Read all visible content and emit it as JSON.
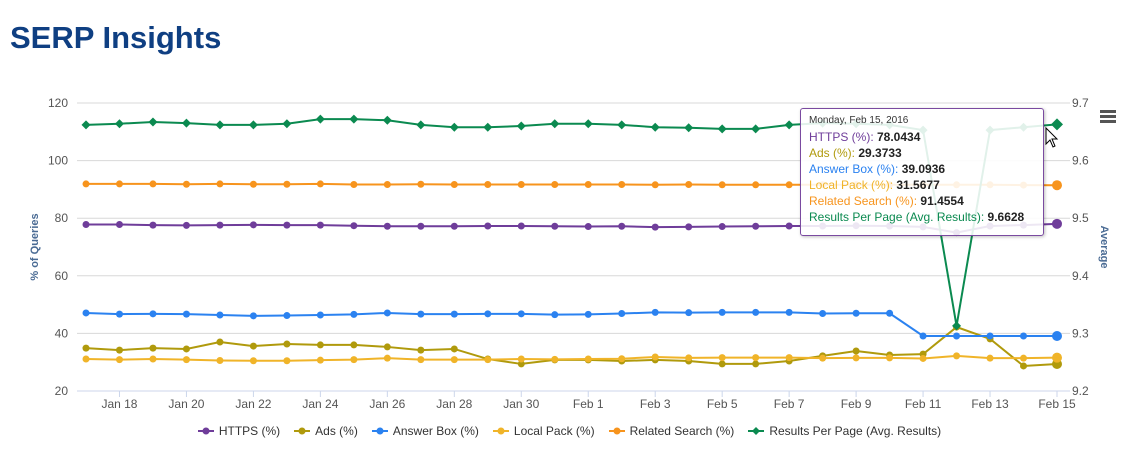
{
  "page_title": "SERP Insights",
  "chart_data": {
    "type": "line",
    "x": [
      "Jan 17",
      "Jan 18",
      "Jan 19",
      "Jan 20",
      "Jan 21",
      "Jan 22",
      "Jan 23",
      "Jan 24",
      "Jan 25",
      "Jan 26",
      "Jan 27",
      "Jan 28",
      "Jan 29",
      "Jan 30",
      "Jan 31",
      "Feb 1",
      "Feb 2",
      "Feb 3",
      "Feb 4",
      "Feb 5",
      "Feb 6",
      "Feb 7",
      "Feb 8",
      "Feb 9",
      "Feb 10",
      "Feb 11",
      "Feb 12",
      "Feb 13",
      "Feb 14",
      "Feb 15"
    ],
    "x_tick_labels": [
      "Jan 18",
      "Jan 20",
      "Jan 22",
      "Jan 24",
      "Jan 26",
      "Jan 28",
      "Jan 30",
      "Feb 1",
      "Feb 3",
      "Feb 5",
      "Feb 7",
      "Feb 9",
      "Feb 11",
      "Feb 13",
      "Feb 15"
    ],
    "ylabel": "% of Queries",
    "ylim": [
      20,
      120
    ],
    "yticks": [
      "20",
      "40",
      "60",
      "80",
      "100",
      "120"
    ],
    "y2label": "Average",
    "y2lim": [
      9.2,
      9.7
    ],
    "y2ticks": [
      "9.2",
      "9.3",
      "9.4",
      "9.5",
      "9.6",
      "9.7"
    ],
    "grid": true,
    "legend_position": "bottom",
    "series": [
      {
        "name": "HTTPS (%)",
        "color": "#6f3d9a",
        "axis": "left",
        "marker": "circle",
        "values": [
          77.8,
          77.8,
          77.6,
          77.5,
          77.6,
          77.7,
          77.6,
          77.6,
          77.4,
          77.2,
          77.2,
          77.2,
          77.3,
          77.3,
          77.2,
          77.1,
          77.2,
          76.9,
          77.0,
          77.1,
          77.2,
          77.3,
          77.3,
          77.4,
          77.3,
          77.0,
          75.0,
          77.3,
          77.6,
          78.0434
        ]
      },
      {
        "name": "Ads (%)",
        "color": "#b09a0c",
        "axis": "left",
        "marker": "circle",
        "values": [
          34.9,
          34.2,
          34.9,
          34.6,
          37.0,
          35.6,
          36.3,
          36.0,
          36.0,
          35.3,
          34.2,
          34.6,
          31.1,
          29.4,
          30.8,
          30.8,
          30.4,
          30.8,
          30.4,
          29.4,
          29.4,
          30.4,
          32.2,
          33.9,
          32.5,
          32.8,
          42.2,
          38.1,
          28.7,
          29.3733
        ]
      },
      {
        "name": "Answer Box (%)",
        "color": "#2b82f0",
        "axis": "left",
        "marker": "circle",
        "values": [
          47.1,
          46.7,
          46.8,
          46.7,
          46.4,
          46.1,
          46.2,
          46.4,
          46.6,
          47.1,
          46.7,
          46.7,
          46.8,
          46.8,
          46.5,
          46.6,
          46.9,
          47.3,
          47.2,
          47.3,
          47.3,
          47.3,
          46.9,
          47.0,
          47.0,
          39.1,
          39.1,
          39.1,
          39.1,
          39.0936
        ]
      },
      {
        "name": "Local Pack (%)",
        "color": "#f0b429",
        "axis": "left",
        "marker": "circle",
        "values": [
          31.1,
          30.9,
          31.1,
          30.9,
          30.6,
          30.5,
          30.5,
          30.7,
          30.9,
          31.4,
          30.9,
          30.9,
          30.9,
          31.1,
          31.0,
          31.1,
          31.2,
          31.8,
          31.5,
          31.6,
          31.6,
          31.6,
          31.4,
          31.5,
          31.5,
          31.3,
          32.2,
          31.4,
          31.4,
          31.5677
        ]
      },
      {
        "name": "Related Search (%)",
        "color": "#f7941d",
        "axis": "left",
        "marker": "circle",
        "values": [
          91.9,
          91.9,
          91.9,
          91.8,
          91.9,
          91.8,
          91.8,
          91.9,
          91.7,
          91.7,
          91.8,
          91.7,
          91.7,
          91.7,
          91.7,
          91.7,
          91.7,
          91.6,
          91.7,
          91.6,
          91.6,
          91.6,
          91.6,
          91.6,
          91.6,
          91.6,
          91.6,
          91.6,
          91.5,
          91.4554
        ]
      },
      {
        "name": "Results Per Page (Avg. Results)",
        "color": "#0b8a50",
        "axis": "right",
        "marker": "diamond",
        "values": [
          9.662,
          9.664,
          9.667,
          9.665,
          9.662,
          9.662,
          9.664,
          9.672,
          9.672,
          9.67,
          9.662,
          9.658,
          9.658,
          9.66,
          9.664,
          9.664,
          9.662,
          9.658,
          9.657,
          9.655,
          9.655,
          9.662,
          9.665,
          9.664,
          9.662,
          9.653,
          9.313,
          9.653,
          9.658,
          9.6628
        ]
      }
    ]
  },
  "tooltip": {
    "date": "Monday, Feb 15, 2016",
    "rows": [
      {
        "label": "HTTPS (%): ",
        "value": "78.0434"
      },
      {
        "label": "Ads (%): ",
        "value": "29.3733"
      },
      {
        "label": "Answer Box (%): ",
        "value": "39.0936"
      },
      {
        "label": "Local Pack (%): ",
        "value": "31.5677"
      },
      {
        "label": "Related Search (%): ",
        "value": "91.4554"
      },
      {
        "label": "Results Per Page (Avg. Results): ",
        "value": "9.6628"
      }
    ]
  }
}
